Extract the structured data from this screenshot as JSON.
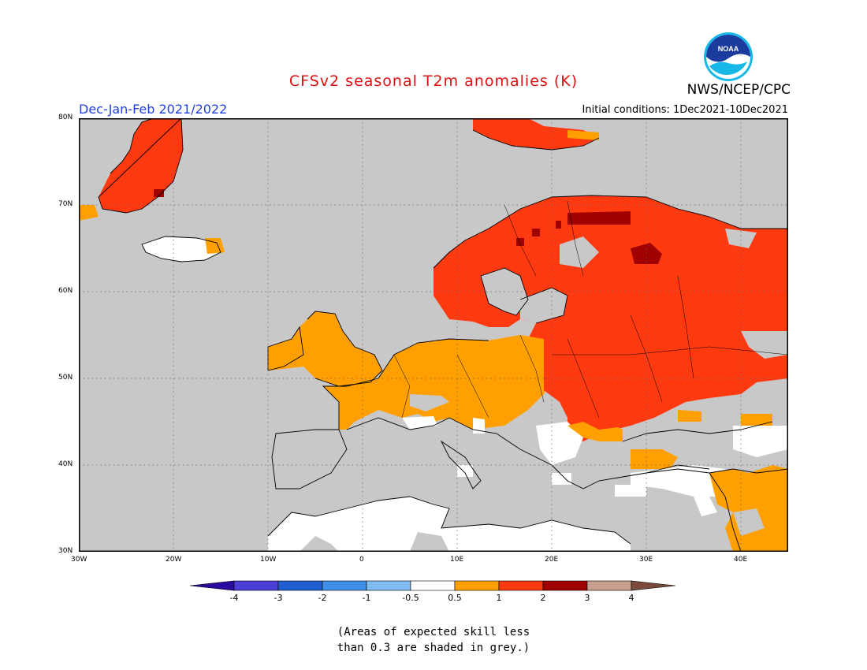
{
  "header": {
    "title": "CFSv2 seasonal T2m anomalies (K)",
    "period": "Dec-Jan-Feb 2021/2022",
    "initial_conditions": "Initial conditions: 1Dec2021-10Dec2021",
    "agency": "NWS/NCEP/CPC",
    "logo_text": "NOAA"
  },
  "map": {
    "lon_range": [
      -30,
      45
    ],
    "lat_range": [
      30,
      80
    ],
    "lat_ticks": [
      "80N",
      "70N",
      "60N",
      "50N",
      "40N",
      "30N"
    ],
    "lon_ticks": [
      "30W",
      "20W",
      "10W",
      "0",
      "10E",
      "20E",
      "30E",
      "40E"
    ],
    "grid": "dotted",
    "skill_mask_color": "#c8c8c8",
    "land_outline_color": "#000000"
  },
  "legend": {
    "labels": [
      "-4",
      "-3",
      "-2",
      "-1",
      "-0.5",
      "0.5",
      "1",
      "2",
      "3",
      "4"
    ],
    "colors": [
      "#2a0ba0",
      "#4a3ed6",
      "#1f5fd0",
      "#3f8fe8",
      "#7fbcf2",
      "#ffffff",
      "#ffa000",
      "#ff3a10",
      "#a00000",
      "#c9a090",
      "#7a4a3c"
    ]
  },
  "note": {
    "line1": "(Areas of expected skill less",
    "line2": "than 0.3 are shaded in grey.)"
  }
}
